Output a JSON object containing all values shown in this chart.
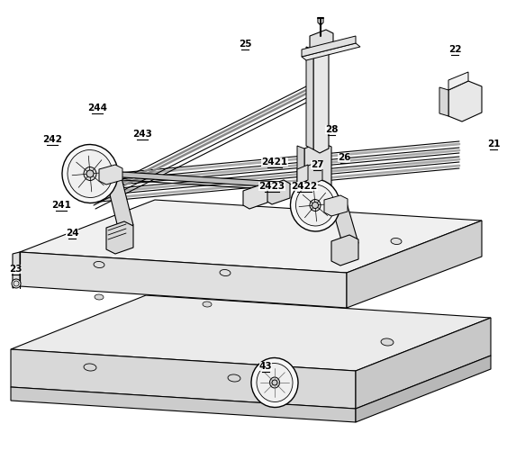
{
  "bg_color": "#ffffff",
  "line_color": "#000000",
  "figsize": [
    5.83,
    5.21
  ],
  "dpi": 100,
  "labels": [
    [
      "21",
      548,
      168
    ],
    [
      "22",
      505,
      63
    ],
    [
      "23",
      17,
      307
    ],
    [
      "24",
      80,
      267
    ],
    [
      "241",
      68,
      236
    ],
    [
      "242",
      58,
      163
    ],
    [
      "243",
      158,
      157
    ],
    [
      "244",
      108,
      128
    ],
    [
      "25",
      272,
      57
    ],
    [
      "26",
      382,
      183
    ],
    [
      "27",
      352,
      191
    ],
    [
      "28",
      368,
      152
    ],
    [
      "2421",
      305,
      188
    ],
    [
      "2422",
      338,
      215
    ],
    [
      "2423",
      302,
      215
    ],
    [
      "43",
      295,
      415
    ]
  ]
}
